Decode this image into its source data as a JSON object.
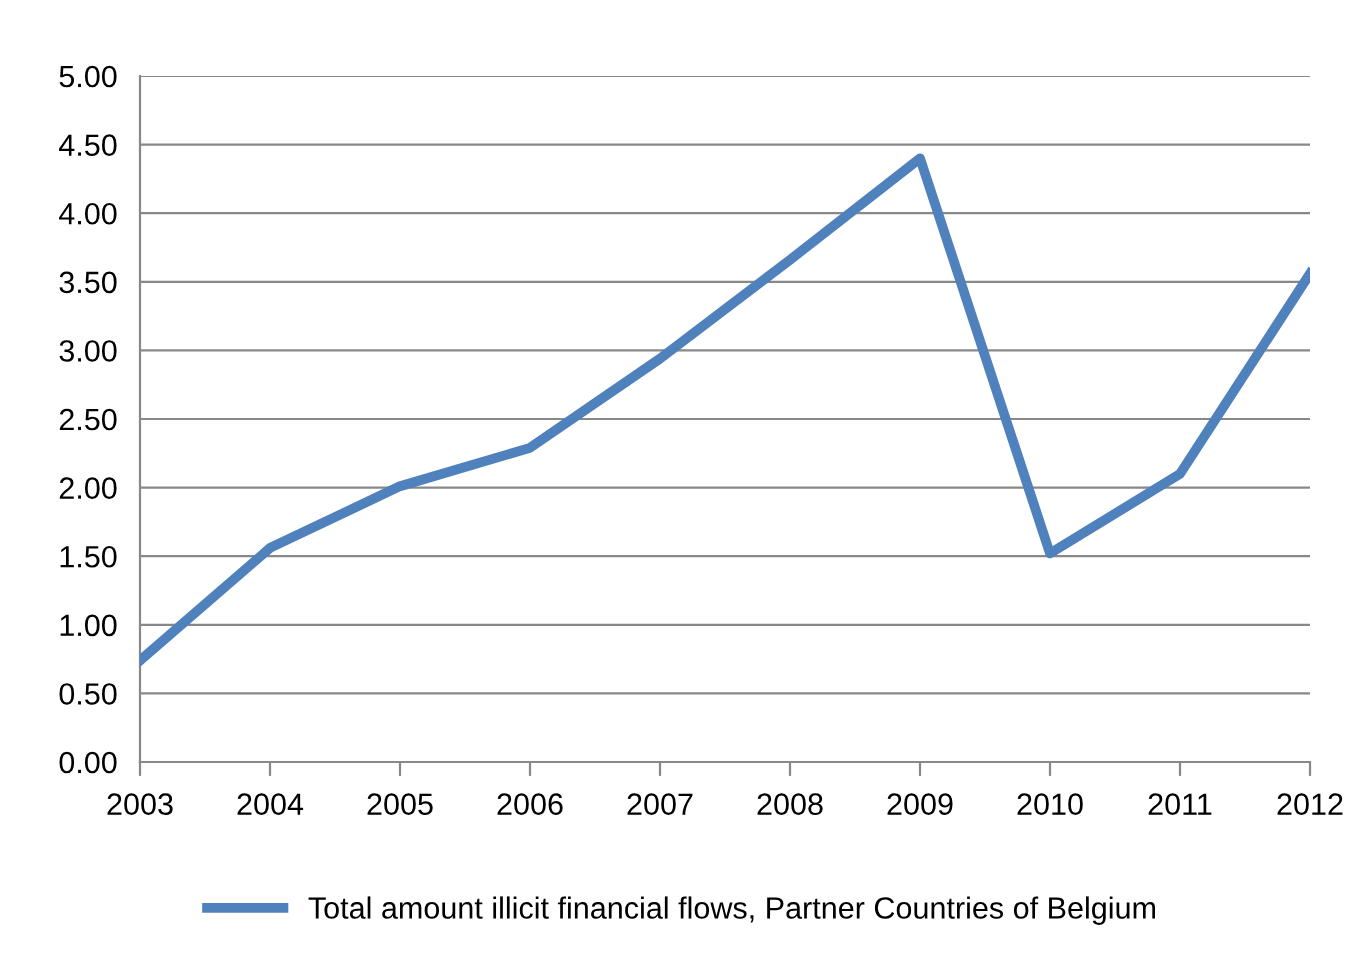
{
  "chart_data": {
    "type": "line",
    "categories": [
      "2003",
      "2004",
      "2005",
      "2006",
      "2007",
      "2008",
      "2009",
      "2010",
      "2011",
      "2012"
    ],
    "series": [
      {
        "name": "Total amount illicit financial flows, Partner Countries of Belgium",
        "color": "#4f81bd",
        "values": [
          0.74,
          1.56,
          2.01,
          2.29,
          2.94,
          3.66,
          4.4,
          1.52,
          2.1,
          3.56
        ]
      }
    ],
    "ylim": [
      0,
      5
    ],
    "yticks": [
      {
        "value": 0,
        "label": "0.00"
      },
      {
        "value": 0.5,
        "label": "0.50"
      },
      {
        "value": 1,
        "label": "1.00"
      },
      {
        "value": 1.5,
        "label": "1.50"
      },
      {
        "value": 2,
        "label": "2.00"
      },
      {
        "value": 2.5,
        "label": "2.50"
      },
      {
        "value": 3,
        "label": "3.00"
      },
      {
        "value": 3.5,
        "label": "3.50"
      },
      {
        "value": 4,
        "label": "4.00"
      },
      {
        "value": 4.5,
        "label": "4.50"
      },
      {
        "value": 5,
        "label": "5.00"
      }
    ],
    "grid": "y",
    "legend": "bottom",
    "line_style": "solid",
    "marker": "none"
  }
}
